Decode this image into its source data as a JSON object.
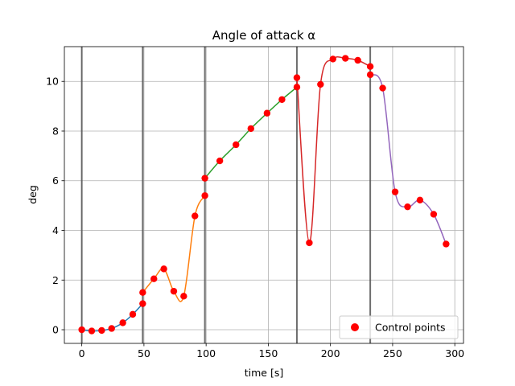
{
  "chart_data": {
    "type": "line",
    "title": "Angle of attack α",
    "xlabel": "time [s]",
    "ylabel": "deg",
    "xlim": [
      -14,
      307
    ],
    "ylim": [
      -0.55,
      11.4
    ],
    "xticks": [
      0,
      50,
      100,
      150,
      200,
      250,
      300
    ],
    "yticks": [
      0,
      2,
      4,
      6,
      8,
      10
    ],
    "grid": true,
    "legend": {
      "placement": "bottom-right",
      "entries": [
        "Control points"
      ]
    },
    "control_point_color": "#ff0000",
    "segment_boundaries": [
      0,
      49,
      99,
      173,
      232
    ],
    "segments": [
      {
        "color": "#1f77b4",
        "points": [
          [
            0,
            0.0
          ],
          [
            8,
            -0.05
          ],
          [
            16,
            -0.03
          ],
          [
            24,
            0.05
          ],
          [
            33,
            0.28
          ],
          [
            41,
            0.62
          ],
          [
            49,
            1.05
          ]
        ]
      },
      {
        "color": "#ff7f0e",
        "points": [
          [
            49,
            1.5
          ],
          [
            58,
            2.05
          ],
          [
            66,
            2.45
          ],
          [
            74,
            1.55
          ],
          [
            82,
            1.35
          ],
          [
            91,
            4.58
          ],
          [
            99,
            5.4
          ]
        ]
      },
      {
        "color": "#2ca02c",
        "points": [
          [
            99,
            6.1
          ],
          [
            111,
            6.8
          ],
          [
            124,
            7.45
          ],
          [
            136,
            8.1
          ],
          [
            149,
            8.72
          ],
          [
            161,
            9.27
          ],
          [
            173,
            9.77
          ]
        ]
      },
      {
        "color": "#d62728",
        "points": [
          [
            173,
            10.15
          ],
          [
            183,
            3.5
          ],
          [
            192,
            9.88
          ],
          [
            202,
            10.9
          ],
          [
            212,
            10.93
          ],
          [
            222,
            10.85
          ],
          [
            232,
            10.6
          ]
        ]
      },
      {
        "color": "#9467bd",
        "points": [
          [
            232,
            10.27
          ],
          [
            242,
            9.73
          ],
          [
            252,
            5.55
          ],
          [
            262,
            4.95
          ],
          [
            272,
            5.22
          ],
          [
            283,
            4.65
          ],
          [
            293,
            3.45
          ]
        ]
      }
    ]
  }
}
